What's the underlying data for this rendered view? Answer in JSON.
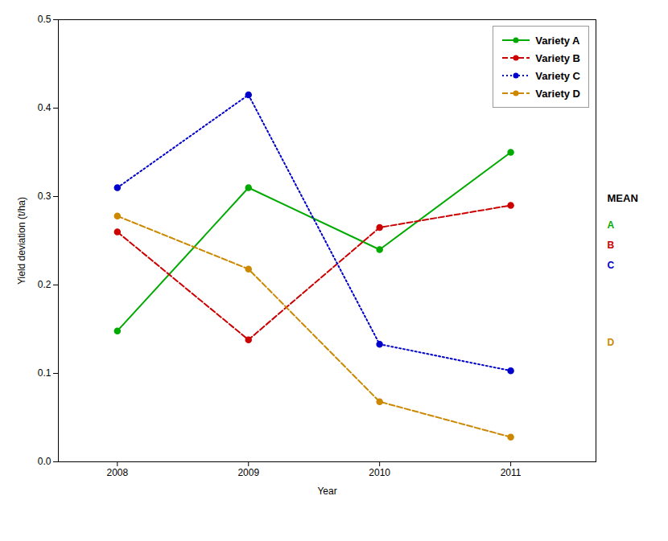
{
  "chart_data": {
    "type": "line",
    "xlabel": "Year",
    "ylabel": "Yield deviation (t/ha)",
    "x": [
      2008,
      2009,
      2010,
      2011
    ],
    "series": [
      {
        "name": "Variety A",
        "color": "#00AA00",
        "line_style": "solid",
        "marker": "circle",
        "values": [
          0.148,
          0.31,
          0.24,
          0.35
        ]
      },
      {
        "name": "Variety B",
        "color": "#CC0000",
        "line_style": "dashed",
        "marker": "circle",
        "values": [
          0.26,
          0.138,
          0.265,
          0.29
        ]
      },
      {
        "name": "Variety C",
        "color": "#0000CC",
        "line_style": "dotted",
        "marker": "circle",
        "values": [
          0.31,
          0.415,
          0.133,
          0.103
        ]
      },
      {
        "name": "Variety D",
        "color": "#CC8800",
        "line_style": "dashed",
        "marker": "circle",
        "values": [
          0.278,
          0.218,
          0.068,
          0.028
        ]
      }
    ],
    "xlim": [
      2007.55,
      2011.65
    ],
    "ylim": [
      0.0,
      0.5
    ],
    "xticks": [
      2008,
      2009,
      2010,
      2011
    ],
    "yticks": [
      {
        "value": 0.0,
        "label": "0.0"
      },
      0.1,
      0.2,
      0.3,
      0.4,
      0.5
    ],
    "legend": "upper right",
    "annotations": [
      {
        "text": "MEAN"
      },
      {
        "text": "A",
        "color": "#00AA00"
      },
      {
        "text": "B",
        "color": "#CC0000"
      },
      {
        "text": "C",
        "color": "#0000CC"
      },
      {
        "text": "D",
        "color": "#CC8800"
      }
    ]
  }
}
